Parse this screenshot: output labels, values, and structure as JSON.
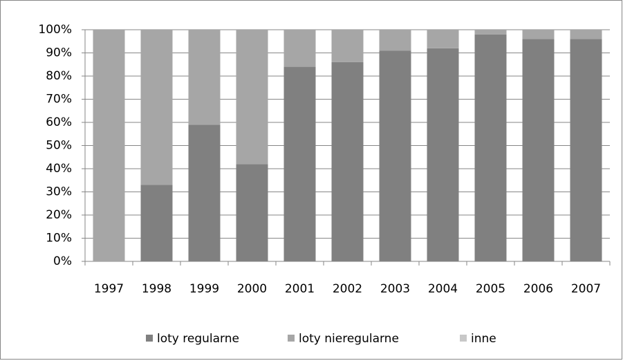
{
  "chart_data": {
    "type": "bar",
    "stacked": true,
    "categories": [
      "1997",
      "1998",
      "1999",
      "2000",
      "2001",
      "2002",
      "2003",
      "2004",
      "2005",
      "2006",
      "2007"
    ],
    "series": [
      {
        "name": "loty regularne",
        "color": "#808080",
        "values": [
          0,
          33,
          59,
          42,
          84,
          86,
          91,
          92,
          98,
          96,
          96
        ]
      },
      {
        "name": "loty nieregularne",
        "color": "#a6a6a6",
        "values": [
          100,
          67,
          41,
          58,
          16,
          14,
          9,
          8,
          2,
          4,
          4
        ]
      },
      {
        "name": "inne",
        "color": "#c8c8c8",
        "values": [
          0,
          0,
          0,
          0,
          0,
          0,
          0,
          0,
          0,
          0,
          0
        ]
      }
    ],
    "ylim": [
      0,
      100
    ],
    "yticks": [
      {
        "value": 0,
        "label": "0%"
      },
      {
        "value": 10,
        "label": "10%"
      },
      {
        "value": 20,
        "label": "20%"
      },
      {
        "value": 30,
        "label": "30%"
      },
      {
        "value": 40,
        "label": "40%"
      },
      {
        "value": 50,
        "label": "50%"
      },
      {
        "value": 60,
        "label": "60%"
      },
      {
        "value": 70,
        "label": "70%"
      },
      {
        "value": 80,
        "label": "80%"
      },
      {
        "value": 90,
        "label": "90%"
      },
      {
        "value": 100,
        "label": "100%"
      }
    ],
    "grid": true,
    "legend": "bottom"
  }
}
